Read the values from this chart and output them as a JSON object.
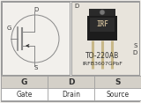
{
  "bg_color": "#f2f0ec",
  "box_border": "#999999",
  "schematic_line": "#888888",
  "schematic_fill": "#333333",
  "right_box_bg": "#e8e4dc",
  "table_header_bg": "#d4d0c8",
  "table_row_bg": "#ffffff",
  "table_border": "#999999",
  "text_dark": "#333333",
  "text_mid": "#555555",
  "package_text": "TO-220AB",
  "part_text": "IRFB3607GPbF",
  "col_headers": [
    "G",
    "D",
    "S"
  ],
  "col_labels": [
    "Gate",
    "Drain",
    "Source"
  ],
  "label_G": "G",
  "label_D": "D",
  "label_S": "S",
  "transistor_body": "#1c1c1c",
  "transistor_tab": "#2a2a2a",
  "transistor_lead": "#c8b888",
  "transistor_label": "#aaaaaa",
  "transistor_hole": "#777777"
}
